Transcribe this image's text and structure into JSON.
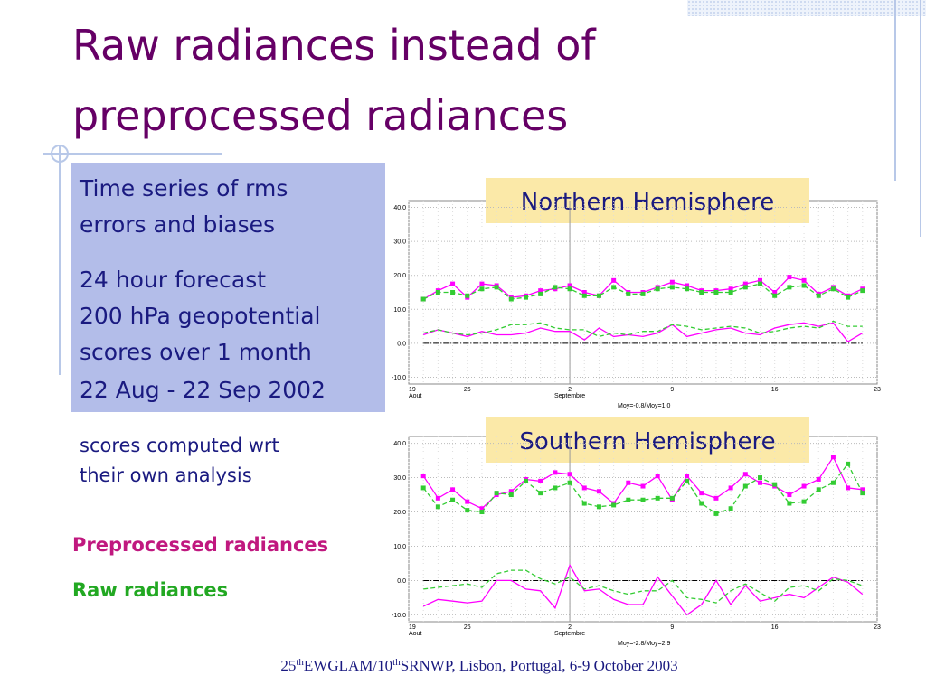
{
  "title_lines": [
    "Raw radiances instead of",
    "preprocessed radiances"
  ],
  "box_lines": [
    "Time series of rms",
    "errors and biases",
    "24 hour forecast",
    "200 hPa geopotential",
    "scores over 1 month",
    "22 Aug - 22 Sep 2002"
  ],
  "note_lines": [
    "scores computed wrt",
    "their own analysis"
  ],
  "legend": [
    {
      "label": "Preprocessed radiances",
      "color": "#c0187f"
    },
    {
      "label": "Raw radiances",
      "color": "#22a822"
    }
  ],
  "footer": [
    "25",
    "th",
    "EWGLAM/10",
    "th",
    "SRNWP, Lisbon, Portugal, 6-9 October 2003"
  ],
  "chart_data": [
    {
      "type": "line",
      "title": "Northern Hemisphere",
      "note": "Moy=-0.8/Moy=1.0",
      "categories": [
        "19",
        null,
        null,
        null,
        "26",
        null,
        null,
        null,
        null,
        null,
        null,
        "2",
        null,
        null,
        null,
        null,
        null,
        null,
        "9",
        null,
        null,
        null,
        null,
        null,
        null,
        "16",
        null,
        null,
        null,
        null,
        null,
        null,
        "23"
      ],
      "x_sublabels": [
        "Aout",
        null,
        null,
        null,
        null,
        null,
        null,
        null,
        null,
        null,
        null,
        "Septembre",
        null,
        null,
        null,
        null,
        null,
        null,
        null,
        null,
        null,
        null,
        null,
        null,
        null,
        null,
        null,
        null,
        null,
        null,
        null,
        null,
        null
      ],
      "ylim": [
        -12,
        42
      ],
      "yticks": [
        {
          "value": -10,
          "label": "-10.0"
        },
        {
          "value": 0,
          "label": "0.0"
        },
        {
          "value": 10,
          "label": "10.0"
        },
        {
          "value": 20,
          "label": "20.0"
        },
        {
          "value": 30,
          "label": "30.0"
        },
        {
          "value": 40,
          "label": "40.0"
        }
      ],
      "ref_line": 0,
      "grid": true,
      "series": [
        {
          "color": "#ff00ff",
          "dashed": false,
          "markers": true,
          "values": [
            null,
            13,
            15.5,
            17.5,
            13.5,
            17.5,
            17,
            13.5,
            14,
            15.5,
            16,
            17,
            15,
            14,
            18.5,
            15,
            15,
            16.5,
            18,
            17,
            15.5,
            15.5,
            16,
            17.5,
            18.5,
            15,
            19.5,
            18.5,
            14.5,
            16.5,
            14,
            16,
            null
          ]
        },
        {
          "color": "#33cc33",
          "dashed": true,
          "markers": true,
          "values": [
            null,
            13,
            15,
            15,
            14,
            16,
            16.5,
            13,
            13.5,
            14.5,
            16.5,
            16,
            14,
            14,
            16.5,
            14.5,
            14.5,
            16,
            16.5,
            16,
            15,
            15,
            15,
            16.5,
            17.5,
            14,
            16.5,
            17,
            14,
            16,
            13.5,
            15.5,
            null
          ]
        },
        {
          "color": "#ff00ff",
          "dashed": false,
          "markers": false,
          "values": [
            null,
            2.5,
            4,
            3,
            2,
            3.5,
            2.5,
            2.5,
            3,
            4.5,
            3.5,
            3.5,
            1,
            4.5,
            2,
            2.5,
            2,
            3,
            5.5,
            2,
            3,
            4,
            4.5,
            3,
            2.5,
            4.5,
            5.5,
            6,
            5,
            6,
            0.5,
            3,
            null
          ]
        },
        {
          "color": "#33cc33",
          "dashed": true,
          "markers": false,
          "values": [
            null,
            3,
            4,
            3,
            2.5,
            3,
            4,
            5.5,
            5.5,
            6,
            4.5,
            4,
            4,
            2,
            3,
            2.5,
            3.5,
            3.5,
            5.5,
            5,
            4,
            4.5,
            5,
            4.5,
            3,
            3.5,
            4.5,
            5,
            4.5,
            6.5,
            5,
            5,
            null
          ]
        }
      ]
    },
    {
      "type": "line",
      "title": "Southern Hemisphere",
      "note": "Moy=-2.8/Moy=2.9",
      "categories": [
        "19",
        null,
        null,
        null,
        "26",
        null,
        null,
        null,
        null,
        null,
        null,
        "2",
        null,
        null,
        null,
        null,
        null,
        null,
        "9",
        null,
        null,
        null,
        null,
        null,
        null,
        "16",
        null,
        null,
        null,
        null,
        null,
        null,
        "23"
      ],
      "x_sublabels": [
        "Aout",
        null,
        null,
        null,
        null,
        null,
        null,
        null,
        null,
        null,
        null,
        "Septembre",
        null,
        null,
        null,
        null,
        null,
        null,
        null,
        null,
        null,
        null,
        null,
        null,
        null,
        null,
        null,
        null,
        null,
        null,
        null,
        null,
        null
      ],
      "ylim": [
        -12,
        42
      ],
      "yticks": [
        {
          "value": -10,
          "label": "-10.0"
        },
        {
          "value": 0,
          "label": "0.0"
        },
        {
          "value": 10,
          "label": "10.0"
        },
        {
          "value": 20,
          "label": "20.0"
        },
        {
          "value": 30,
          "label": "30.0"
        },
        {
          "value": 40,
          "label": "40.0"
        }
      ],
      "ref_line": 0,
      "grid": true,
      "series": [
        {
          "color": "#ff00ff",
          "dashed": false,
          "markers": true,
          "values": [
            null,
            30.5,
            24,
            26.5,
            23,
            21,
            25,
            26,
            29.5,
            29,
            31.5,
            31,
            27,
            26,
            22.5,
            28.5,
            27.5,
            30.5,
            23.5,
            30.5,
            25.5,
            24,
            27,
            31,
            28.5,
            27.5,
            25,
            27.5,
            29.5,
            36,
            27,
            26.5,
            null
          ]
        },
        {
          "color": "#33cc33",
          "dashed": true,
          "markers": true,
          "values": [
            null,
            27,
            21.5,
            23.5,
            20.5,
            20,
            25.5,
            25,
            29,
            25.5,
            27,
            28.5,
            22.5,
            21.5,
            22,
            23.5,
            23.5,
            24,
            24,
            29,
            22.5,
            19.5,
            21,
            27.5,
            30,
            28,
            22.5,
            23,
            26.5,
            28.5,
            34,
            25.5,
            null
          ]
        },
        {
          "color": "#ff00ff",
          "dashed": false,
          "markers": false,
          "values": [
            null,
            -7.5,
            -5.5,
            -6,
            -6.5,
            -6,
            0,
            0,
            -2.5,
            -3,
            -8,
            4.5,
            -3,
            -2.5,
            -5.5,
            -7,
            -7,
            1,
            -4.5,
            -10,
            -7,
            0,
            -7,
            -1.5,
            -6,
            -5,
            -4,
            -5,
            -2,
            1,
            -0.5,
            -4,
            null
          ]
        },
        {
          "color": "#33cc33",
          "dashed": true,
          "markers": false,
          "values": [
            null,
            -2.5,
            -2,
            -1.5,
            -1,
            -2,
            2,
            3,
            3,
            0.5,
            -1,
            1,
            -2.5,
            -1.5,
            -3,
            -4,
            -3,
            -3,
            0,
            -5,
            -5.5,
            -6.5,
            -3,
            -1,
            -3.5,
            -6,
            -2,
            -1.5,
            -3,
            0.5,
            0,
            -1.5,
            null
          ]
        }
      ]
    }
  ]
}
